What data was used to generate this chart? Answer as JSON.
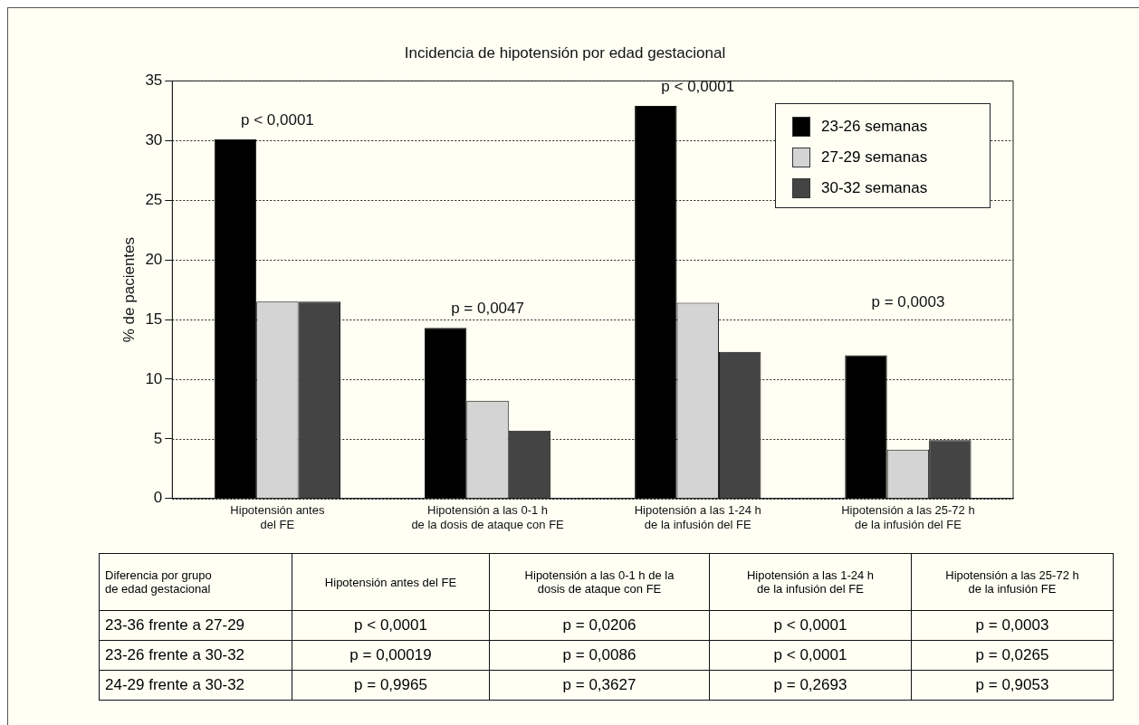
{
  "chart_data": {
    "type": "bar",
    "title": "Incidencia de hipotensión por edad gestacional",
    "ylabel": "% de pacientes",
    "categories": [
      "Hipotensión antes\ndel FE",
      "Hipotensión a las 0-1 h\nde la dosis de ataque con FE",
      "Hipotensión a las 1-24 h\nde la infusión del FE",
      "Hipotensión a las 25-72 h\nde la infusión del FE"
    ],
    "series": [
      {
        "name": "23-26 semanas",
        "color": "#000000",
        "values": [
          30.1,
          14.3,
          32.9,
          12.0
        ]
      },
      {
        "name": "27-29 semanas",
        "color": "#d4d4d4",
        "values": [
          16.5,
          8.2,
          16.4,
          4.1
        ]
      },
      {
        "name": "30-32 semanas",
        "color": "#444444",
        "values": [
          16.5,
          5.7,
          12.3,
          4.9
        ]
      }
    ],
    "ylim": [
      0,
      35
    ],
    "yticks": [
      0,
      5,
      10,
      15,
      20,
      25,
      30,
      35
    ],
    "grid": "y",
    "legend": "top right",
    "annotations": [
      "p < 0,0001",
      "p = 0,0047",
      "p < 0,0001",
      "p = 0,0003",
      "Diferencia por grupo\nde edad gestacional",
      "Hipotensión antes del FE",
      "Hipotensión a las 0-1 h de la\ndosis de ataque con FE",
      "Hipotensión a las 1-24 h\nde la infusión del FE",
      "Hipotensión a las 25-72 h\nde la infusión FE",
      "23-36 frente a 27-29",
      "p < 0,0001",
      "p = 0,0206",
      "p < 0,0001",
      "p = 0,0003",
      "23-26 frente a 30-32",
      "p = 0,00019",
      "p = 0,0086",
      "p < 0,0001",
      "p = 0,0265",
      "24-29 frente a 30-32",
      "p = 0,9965",
      "p = 0,3627",
      "p = 0,2693",
      "p = 0,9053"
    ]
  }
}
